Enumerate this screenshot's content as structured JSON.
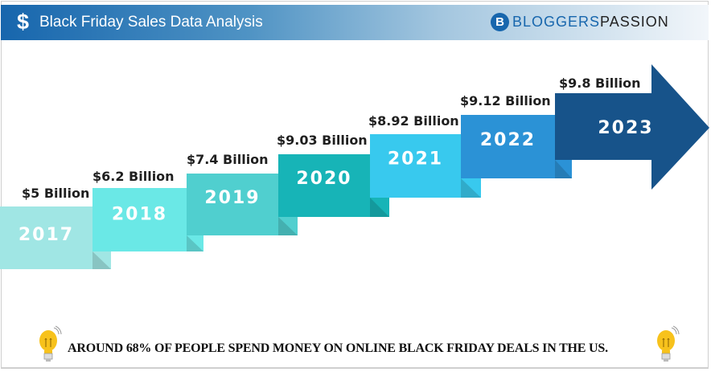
{
  "header": {
    "icon": "dollar-icon",
    "title": "Black Friday Sales Data Analysis",
    "logo": {
      "mark": "B",
      "text_part1": "BLOGGERS",
      "text_part2": "PASSION"
    }
  },
  "chart_data": {
    "type": "bar",
    "style": "ascending steps ending in arrow",
    "title": "Black Friday Sales Data Analysis",
    "categories": [
      "2017",
      "2018",
      "2019",
      "2020",
      "2021",
      "2022",
      "2023"
    ],
    "values": [
      5,
      6.2,
      7.4,
      9.03,
      8.92,
      9.12,
      9.8
    ],
    "unit": "Billion USD",
    "labels": [
      "$5 Billion",
      "$6.2 Billion",
      "$7.4 Billion",
      "$9.03 Billion",
      "$8.92 Billion",
      "$9.12 Billion",
      "$9.8 Billion"
    ],
    "colors": [
      "#a0e6e4",
      "#6ae8e6",
      "#50cfcf",
      "#17b4b7",
      "#38c9ee",
      "#2b92d6",
      "#17538a"
    ]
  },
  "footer": {
    "icon": "lightbulb-icon",
    "text": "AROUND 68% OF PEOPLE SPEND MONEY ON ONLINE BLACK FRIDAY DEALS IN THE US."
  }
}
